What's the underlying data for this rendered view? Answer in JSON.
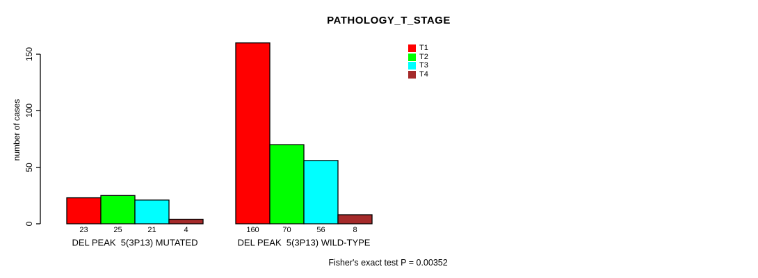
{
  "title": "PATHOLOGY_T_STAGE",
  "footer": "Fisher's exact test P = 0.00352",
  "chart_data": {
    "type": "bar",
    "title": "PATHOLOGY_T_STAGE",
    "ylabel": "number of cases",
    "xlabel": "",
    "categories": [
      "DEL PEAK  5(3P13) MUTATED",
      "DEL PEAK  5(3P13) WILD-TYPE"
    ],
    "series": [
      {
        "name": "T1",
        "color": "#ff0000",
        "values": [
          23,
          160
        ]
      },
      {
        "name": "T2",
        "color": "#00ff00",
        "values": [
          25,
          70
        ]
      },
      {
        "name": "T3",
        "color": "#00ffff",
        "values": [
          21,
          56
        ]
      },
      {
        "name": "T4",
        "color": "#a52a2a",
        "values": [
          4,
          8
        ]
      }
    ],
    "bar_value_labels": [
      [
        "23",
        "25",
        "21",
        "4"
      ],
      [
        "160",
        "70",
        "56",
        "8"
      ]
    ],
    "yticks": [
      0,
      50,
      100,
      150
    ],
    "ylim": [
      0,
      160
    ],
    "grid": false,
    "legend_position": "top-right",
    "legend_entries": [
      "T1",
      "T2",
      "T3",
      "T4"
    ],
    "annotation": "Fisher's exact test P = 0.00352",
    "axis_color": "#000000",
    "bar_border_color": "#000000",
    "background_color": "#ffffff"
  }
}
